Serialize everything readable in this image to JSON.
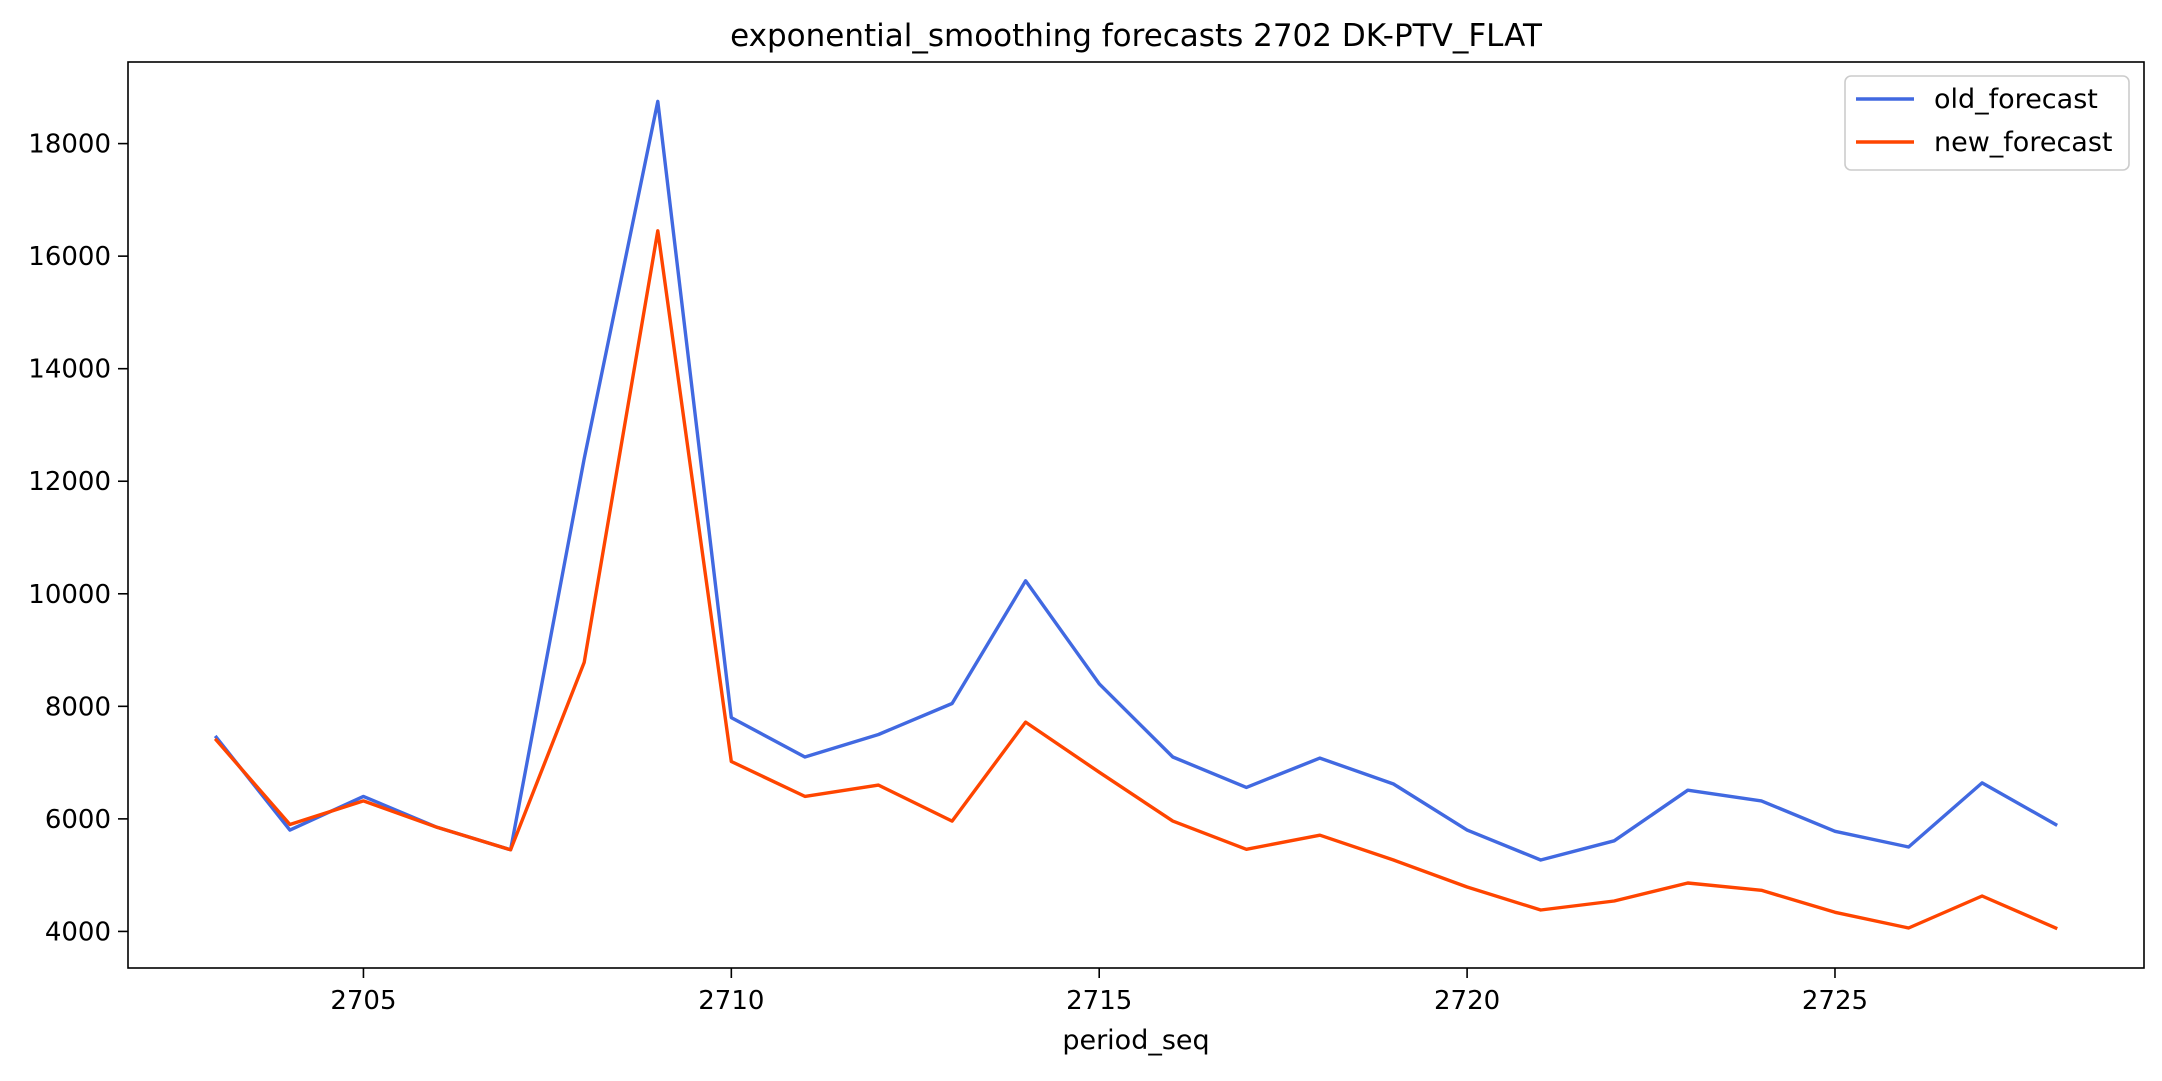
{
  "chart_data": {
    "type": "line",
    "title": "exponential_smoothing forecasts 2702 DK-PTV_FLAT",
    "xlabel": "period_seq",
    "ylabel": "",
    "x": [
      2703,
      2704,
      2705,
      2706,
      2707,
      2708,
      2709,
      2710,
      2711,
      2712,
      2713,
      2714,
      2715,
      2716,
      2717,
      2718,
      2719,
      2720,
      2721,
      2722,
      2723,
      2724,
      2725,
      2726,
      2727,
      2728
    ],
    "series": [
      {
        "name": "old_forecast",
        "color": "#4169e1",
        "values": [
          7450,
          5800,
          6400,
          5850,
          5450,
          12400,
          18750,
          7800,
          7100,
          7500,
          8050,
          10230,
          8400,
          7100,
          6560,
          7080,
          6620,
          5800,
          5270,
          5610,
          6510,
          6320,
          5780,
          5500,
          6640,
          5900
        ]
      },
      {
        "name": "new_forecast",
        "color": "#ff4500",
        "values": [
          7400,
          5900,
          6320,
          5850,
          5450,
          8780,
          16450,
          7020,
          6400,
          6600,
          5960,
          7720,
          6830,
          5960,
          5460,
          5710,
          5270,
          4790,
          4380,
          4540,
          4860,
          4730,
          4340,
          4060,
          4630,
          4060
        ]
      }
    ],
    "xlim": [
      2701.8,
      2729.2
    ],
    "ylim": [
      3350,
      19450
    ],
    "xticks": [
      2705,
      2710,
      2715,
      2720,
      2725
    ],
    "yticks": [
      4000,
      6000,
      8000,
      10000,
      12000,
      14000,
      16000,
      18000
    ],
    "grid": false,
    "legend_position": "top-right"
  }
}
